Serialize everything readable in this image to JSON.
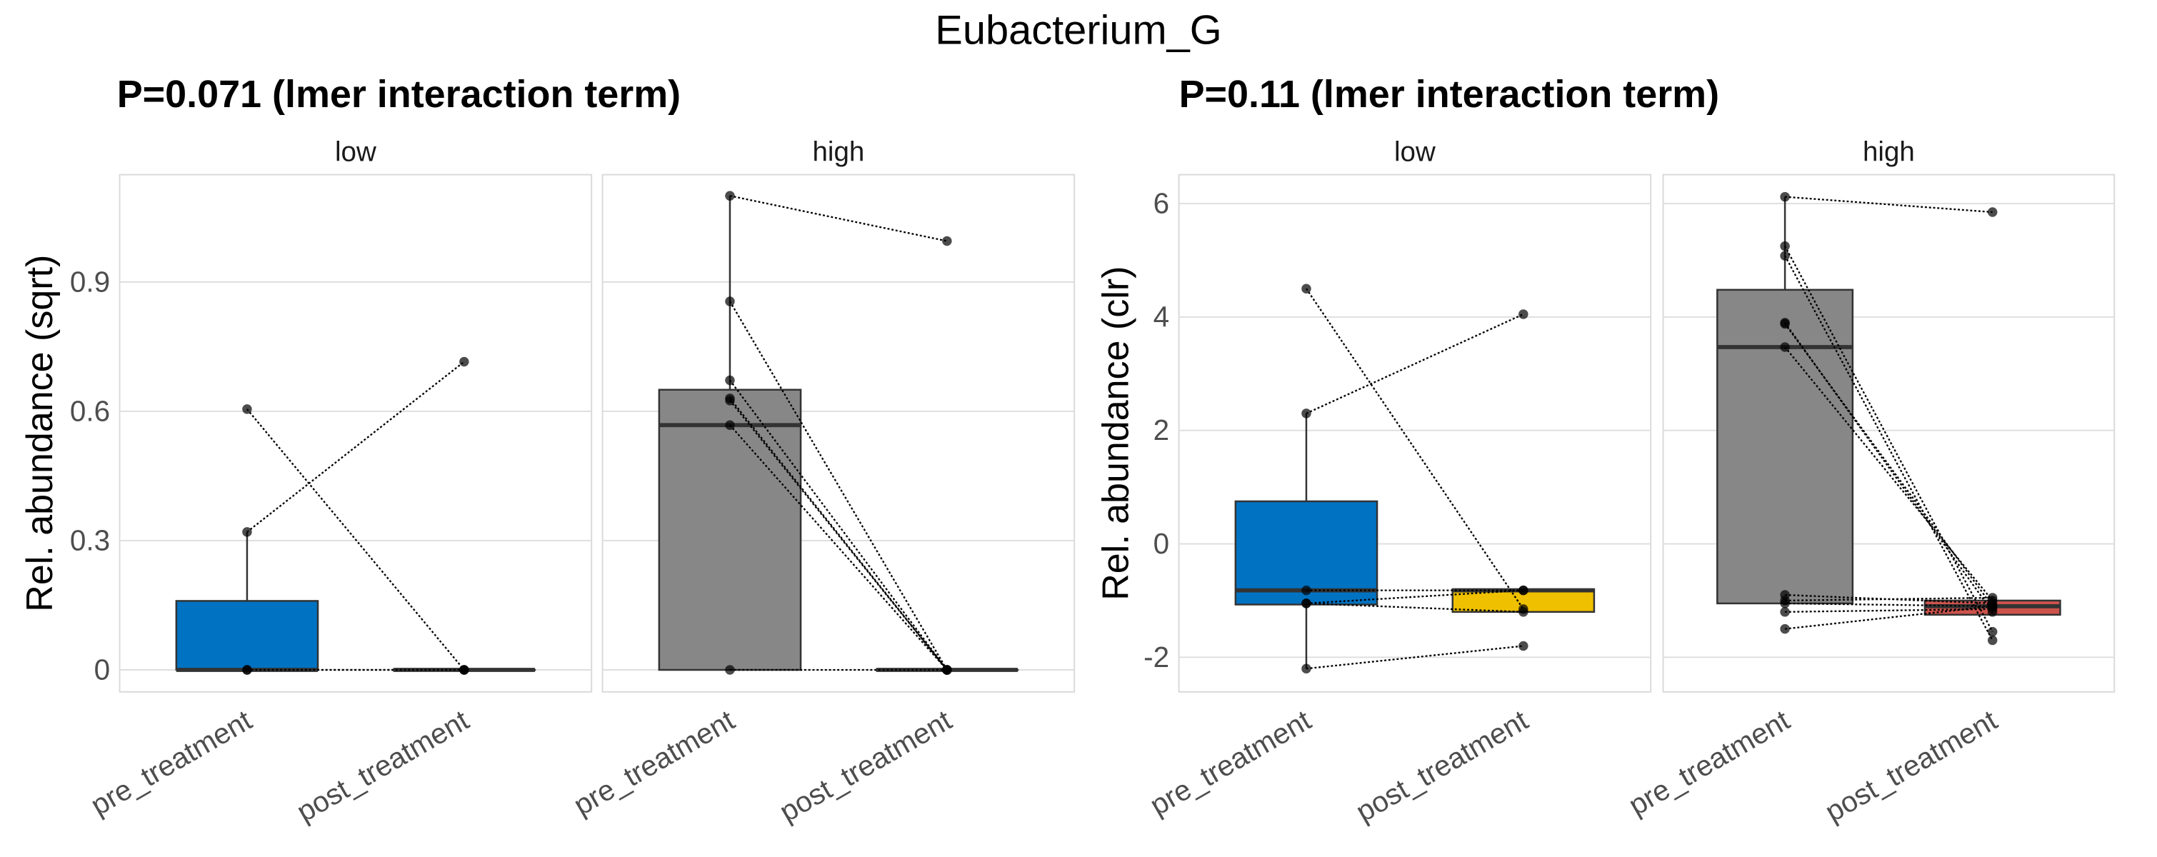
{
  "title": "Eubacterium_G",
  "colors": {
    "pre_low": "#0072C2",
    "pre_high": "#878787",
    "post_low_sqrt": "#878787",
    "post_low_clr": "#EFC000",
    "post_high_sqrt": "#878787",
    "post_high_clr": "#CD534C"
  },
  "chart_data": [
    {
      "type": "box",
      "title": "P=0.071 (lmer interaction term)",
      "ylabel": "Rel. abundance (sqrt)",
      "ylim": [
        -0.051,
        1.149
      ],
      "yticks": [
        0,
        0.3,
        0.6,
        0.9
      ],
      "ytick_labels": [
        "0",
        "0.3",
        "0.6",
        "0.9"
      ],
      "categories": [
        "pre_treatment",
        "post_treatment"
      ],
      "grid": true,
      "panels": [
        {
          "label": "low",
          "boxes": [
            {
              "category": "pre_treatment",
              "color": "#0072C2",
              "lower": 0,
              "q1": 0,
              "median": 0,
              "q3": 0.16,
              "upper": 0.32
            },
            {
              "category": "post_treatment",
              "color": "#878787",
              "lower": 0,
              "q1": 0,
              "median": 0,
              "q3": 0,
              "upper": 0
            }
          ],
          "pairs": [
            [
              0.605,
              0
            ],
            [
              0.32,
              0.715
            ],
            [
              0,
              0
            ],
            [
              0,
              0
            ]
          ]
        },
        {
          "label": "high",
          "boxes": [
            {
              "category": "pre_treatment",
              "color": "#878787",
              "lower": 0,
              "q1": 0,
              "median": 0.568,
              "q3": 0.65,
              "upper": 1.1
            },
            {
              "category": "post_treatment",
              "color": "#878787",
              "lower": 0,
              "q1": 0,
              "median": 0,
              "q3": 0,
              "upper": 0
            }
          ],
          "pairs": [
            [
              1.1,
              0.995
            ],
            [
              0.855,
              0
            ],
            [
              0.672,
              0
            ],
            [
              0.63,
              0
            ],
            [
              0.625,
              0
            ],
            [
              0.568,
              0
            ],
            [
              0,
              0
            ]
          ]
        }
      ]
    },
    {
      "type": "box",
      "title": "P=0.11 (lmer interaction term)",
      "ylabel": "Rel. abundance (clr)",
      "ylim": [
        -2.61,
        6.51
      ],
      "yticks": [
        -2,
        0,
        2,
        4,
        6
      ],
      "ytick_labels": [
        "-2",
        "0",
        "2",
        "4",
        "6"
      ],
      "categories": [
        "pre_treatment",
        "post_treatment"
      ],
      "grid": true,
      "panels": [
        {
          "label": "low",
          "boxes": [
            {
              "category": "pre_treatment",
              "color": "#0072C2",
              "lower": -2.2,
              "q1": -1.07,
              "median": -0.82,
              "q3": 0.75,
              "upper": 2.3
            },
            {
              "category": "post_treatment",
              "color": "#EFC000",
              "lower": -1.2,
              "q1": -1.2,
              "median": -0.82,
              "q3": -0.8,
              "upper": -0.8
            }
          ],
          "pairs": [
            [
              4.5,
              -1.15
            ],
            [
              2.3,
              4.05
            ],
            [
              -0.82,
              -0.82
            ],
            [
              -1.05,
              -0.82
            ],
            [
              -1.05,
              -1.2
            ],
            [
              -2.2,
              -1.8
            ]
          ]
        },
        {
          "label": "high",
          "boxes": [
            {
              "category": "pre_treatment",
              "color": "#878787",
              "lower": -1.05,
              "q1": -1.05,
              "median": 3.47,
              "q3": 4.48,
              "upper": 6.12
            },
            {
              "category": "post_treatment",
              "color": "#CD534C",
              "lower": -1.25,
              "q1": -1.25,
              "median": -1.1,
              "q3": -1.0,
              "upper": -1.0
            }
          ],
          "pairs": [
            [
              6.12,
              5.85
            ],
            [
              5.25,
              -1.55
            ],
            [
              5.08,
              -1.7
            ],
            [
              3.9,
              -1.2
            ],
            [
              3.88,
              -1.1
            ],
            [
              3.47,
              -1.0
            ],
            [
              -0.9,
              -1.05
            ],
            [
              -1.0,
              -0.95
            ],
            [
              -1.05,
              -1.1
            ],
            [
              -1.2,
              -1.15
            ],
            [
              -1.5,
              -1.1
            ]
          ]
        }
      ]
    }
  ]
}
